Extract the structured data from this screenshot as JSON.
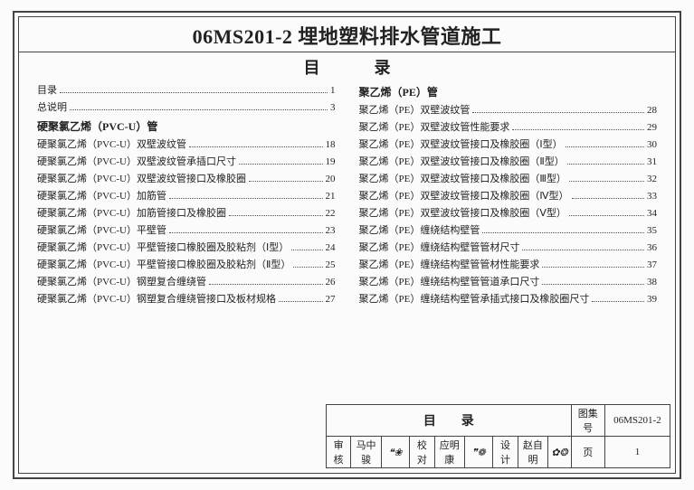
{
  "title": "06MS201-2 埋地塑料排水管道施工",
  "toc_heading_left": "目",
  "toc_heading_right": "录",
  "columns": {
    "left": [
      {
        "type": "entry",
        "label": "目录",
        "page": "1"
      },
      {
        "type": "entry",
        "label": "总说明",
        "page": "3"
      },
      {
        "type": "section",
        "label": "硬聚氯乙烯（PVC-U）管"
      },
      {
        "type": "entry",
        "label": "硬聚氯乙烯（PVC-U）双壁波纹管",
        "page": "18"
      },
      {
        "type": "entry",
        "label": "硬聚氯乙烯（PVC-U）双壁波纹管承插口尺寸",
        "page": "19"
      },
      {
        "type": "entry",
        "label": "硬聚氯乙烯（PVC-U）双壁波纹管接口及橡胶圈",
        "page": "20"
      },
      {
        "type": "entry",
        "label": "硬聚氯乙烯（PVC-U）加筋管",
        "page": "21"
      },
      {
        "type": "entry",
        "label": "硬聚氯乙烯（PVC-U）加筋管接口及橡胶圈",
        "page": "22"
      },
      {
        "type": "entry",
        "label": "硬聚氯乙烯（PVC-U）平壁管",
        "page": "23"
      },
      {
        "type": "entry",
        "label": "硬聚氯乙烯（PVC-U）平壁管接口橡胶圈及胶粘剂（Ⅰ型）",
        "page": "24"
      },
      {
        "type": "entry",
        "label": "硬聚氯乙烯（PVC-U）平壁管接口橡胶圈及胶粘剂（Ⅱ型）",
        "page": "25"
      },
      {
        "type": "entry",
        "label": "硬聚氯乙烯（PVC-U）钢塑复合缠绕管",
        "page": "26"
      },
      {
        "type": "entry",
        "label": "硬聚氯乙烯（PVC-U）钢塑复合缠绕管接口及板材规格",
        "page": "27"
      }
    ],
    "right": [
      {
        "type": "section",
        "label": "聚乙烯（PE）管"
      },
      {
        "type": "entry",
        "label": "聚乙烯（PE）双壁波纹管",
        "page": "28"
      },
      {
        "type": "entry",
        "label": "聚乙烯（PE）双壁波纹管性能要求",
        "page": "29"
      },
      {
        "type": "entry",
        "label": "聚乙烯（PE）双壁波纹管接口及橡胶圈（Ⅰ型）",
        "page": "30"
      },
      {
        "type": "entry",
        "label": "聚乙烯（PE）双壁波纹管接口及橡胶圈（Ⅱ型）",
        "page": "31"
      },
      {
        "type": "entry",
        "label": "聚乙烯（PE）双壁波纹管接口及橡胶圈（Ⅲ型）",
        "page": "32"
      },
      {
        "type": "entry",
        "label": "聚乙烯（PE）双壁波纹管接口及橡胶圈（Ⅳ型）",
        "page": "33"
      },
      {
        "type": "entry",
        "label": "聚乙烯（PE）双壁波纹管接口及橡胶圈（Ⅴ型）",
        "page": "34"
      },
      {
        "type": "entry",
        "label": "聚乙烯（PE）缠绕结构壁管",
        "page": "35"
      },
      {
        "type": "entry",
        "label": "聚乙烯（PE）缠绕结构壁管管材尺寸",
        "page": "36"
      },
      {
        "type": "entry",
        "label": "聚乙烯（PE）缠绕结构壁管管材性能要求",
        "page": "37"
      },
      {
        "type": "entry",
        "label": "聚乙烯（PE）缠绕结构壁管管道承口尺寸",
        "page": "38"
      },
      {
        "type": "entry",
        "label": "聚乙烯（PE）缠绕结构壁管承插式接口及橡胶圈尺寸",
        "page": "39"
      }
    ]
  },
  "titleblock": {
    "mulu": "目录",
    "tuji_label": "图集号",
    "tuji_value": "06MS201-2",
    "shenhe_label": "审核",
    "shenhe_name": "马中骏",
    "jiaodui_label": "校对",
    "jiaodui_name": "应明康",
    "sheji_label": "设计",
    "sheji_name": "赵自明",
    "ye_label": "页",
    "ye_value": "1"
  }
}
